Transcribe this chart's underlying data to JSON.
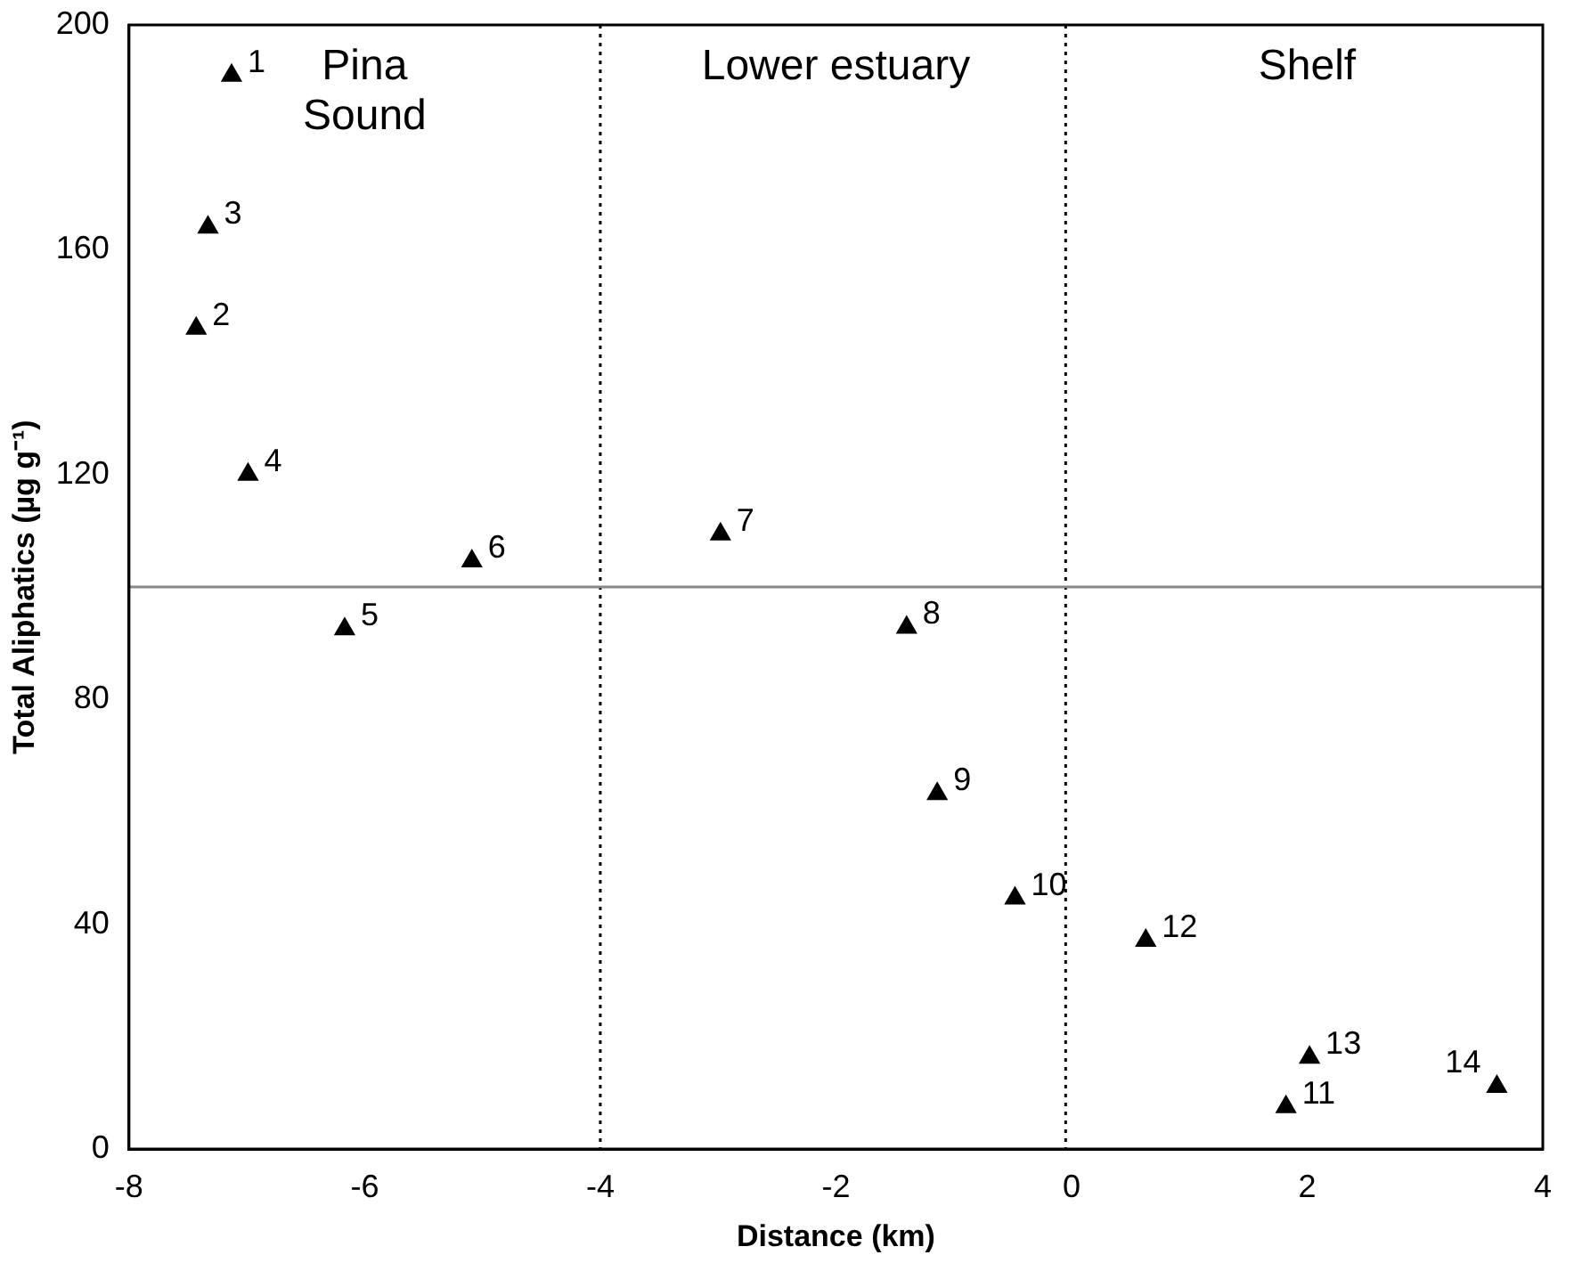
{
  "chart_data": {
    "type": "scatter",
    "xlabel": "Distance (km)",
    "ylabel": "Total Aliphatics (µg g⁻¹)",
    "x": [
      -7.13,
      -7.43,
      -7.33,
      -6.99,
      -6.17,
      -5.09,
      -2.98,
      -1.4,
      -1.14,
      -0.48,
      1.82,
      0.63,
      2.02,
      3.61
    ],
    "series": [
      {
        "color": "#000000",
        "values": [
          191,
          146,
          164,
          120,
          92.5,
          104.6,
          109.4,
          92.8,
          63.2,
          44.6,
          7.5,
          37.1,
          16.3,
          11.1
        ]
      }
    ],
    "marker": "triangle",
    "grid": false,
    "legend": false,
    "xlim": [
      -8,
      4
    ],
    "xticks": [
      -8,
      -6,
      -4,
      -2,
      0,
      2,
      4
    ],
    "ylim": [
      0,
      200
    ],
    "yticks": [
      0,
      40,
      80,
      120,
      160,
      200
    ],
    "ref_lines": [
      {
        "axis": "x",
        "value": -4,
        "color": "#000000",
        "line_style": "dotted"
      },
      {
        "axis": "x",
        "value": -0.05,
        "color": "#000000",
        "line_style": "dotted"
      },
      {
        "axis": "y",
        "value": 100,
        "color": "#888888",
        "line_style": "solid"
      }
    ],
    "annotations": [
      "Pina\nSound",
      "Lower estuary",
      "Shelf",
      {
        "text": "1",
        "x": -7.13,
        "y": 191
      },
      {
        "text": "2",
        "x": -7.43,
        "y": 146
      },
      {
        "text": "3",
        "x": -7.33,
        "y": 164
      },
      {
        "text": "4",
        "x": -6.99,
        "y": 120
      },
      {
        "text": "5",
        "x": -6.17,
        "y": 92.5
      },
      {
        "text": "6",
        "x": -5.09,
        "y": 104.6
      },
      {
        "text": "7",
        "x": -2.98,
        "y": 109.4
      },
      {
        "text": "8",
        "x": -1.4,
        "y": 92.8
      },
      {
        "text": "9",
        "x": -1.14,
        "y": 63.2
      },
      {
        "text": "10",
        "x": -0.48,
        "y": 44.6
      },
      {
        "text": "11",
        "x": 1.82,
        "y": 7.5
      },
      {
        "text": "12",
        "x": 0.63,
        "y": 37.1
      },
      {
        "text": "13",
        "x": 2.02,
        "y": 16.3
      },
      {
        "text": "14",
        "x": 3.61,
        "y": 11.1
      }
    ]
  }
}
